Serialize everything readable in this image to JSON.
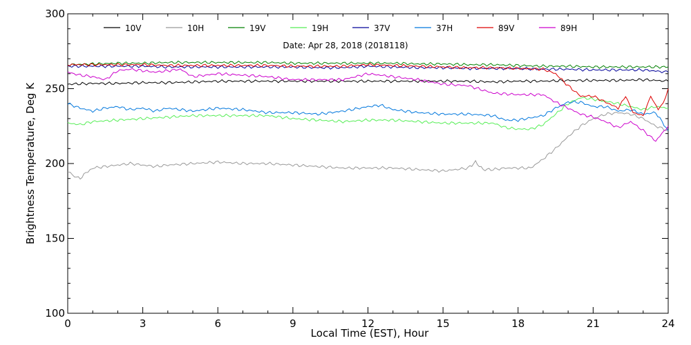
{
  "chart_data": {
    "type": "line",
    "title": "",
    "subtitle": "Date: Apr 28, 2018 (2018118)",
    "xlabel": "Local Time (EST), Hour",
    "ylabel": "Brightness Temperature, Deg K",
    "xlim": [
      0,
      24
    ],
    "ylim": [
      100,
      300
    ],
    "xticks": [
      0,
      3,
      6,
      9,
      12,
      15,
      18,
      21,
      24
    ],
    "yticks": [
      100,
      150,
      200,
      250,
      300
    ],
    "xtick_labels": [
      "0",
      "3",
      "6",
      "9",
      "12",
      "15",
      "18",
      "21",
      "24"
    ],
    "ytick_labels": [
      "100",
      "150",
      "200",
      "250",
      "300"
    ],
    "grid": false,
    "legend_position": "top",
    "series": [
      {
        "name": "10V",
        "color": "#000000",
        "points": [
          [
            0,
            253
          ],
          [
            1,
            253.5
          ],
          [
            2,
            253.5
          ],
          [
            3,
            254
          ],
          [
            4,
            254
          ],
          [
            5,
            254.5
          ],
          [
            6,
            255
          ],
          [
            7,
            255
          ],
          [
            8,
            255
          ],
          [
            9,
            255
          ],
          [
            10,
            255
          ],
          [
            11,
            255
          ],
          [
            12,
            255
          ],
          [
            13,
            255
          ],
          [
            14,
            255
          ],
          [
            15,
            255
          ],
          [
            16,
            255
          ],
          [
            17,
            254.5
          ],
          [
            18,
            255
          ],
          [
            19,
            255
          ],
          [
            20,
            255.5
          ],
          [
            21,
            255.5
          ],
          [
            22,
            255.5
          ],
          [
            23,
            256
          ],
          [
            24,
            255
          ]
        ]
      },
      {
        "name": "10H",
        "color": "#999999",
        "points": [
          [
            0,
            195
          ],
          [
            0.2,
            192
          ],
          [
            0.5,
            190
          ],
          [
            0.8,
            195
          ],
          [
            1,
            197
          ],
          [
            1.5,
            198
          ],
          [
            2,
            199
          ],
          [
            2.5,
            200
          ],
          [
            3,
            199
          ],
          [
            3.5,
            198
          ],
          [
            4,
            199
          ],
          [
            5,
            200
          ],
          [
            6,
            201
          ],
          [
            7,
            200
          ],
          [
            8,
            200
          ],
          [
            9,
            199
          ],
          [
            10,
            198
          ],
          [
            11,
            197
          ],
          [
            12,
            197
          ],
          [
            13,
            197
          ],
          [
            14,
            196
          ],
          [
            15,
            195
          ],
          [
            16,
            197
          ],
          [
            16.3,
            201
          ],
          [
            16.6,
            196
          ],
          [
            17,
            196
          ],
          [
            17.5,
            197
          ],
          [
            18,
            197
          ],
          [
            18.5,
            197
          ],
          [
            19,
            203
          ],
          [
            19.5,
            210
          ],
          [
            20,
            218
          ],
          [
            20.5,
            225
          ],
          [
            21,
            230
          ],
          [
            21.5,
            233
          ],
          [
            22,
            234
          ],
          [
            22.5,
            233
          ],
          [
            23,
            230
          ],
          [
            23.5,
            225
          ],
          [
            24,
            222
          ]
        ]
      },
      {
        "name": "19V",
        "color": "#008000",
        "points": [
          [
            0,
            266
          ],
          [
            1,
            266.5
          ],
          [
            2,
            267
          ],
          [
            3,
            267
          ],
          [
            4,
            267.5
          ],
          [
            5,
            267.5
          ],
          [
            6,
            267.5
          ],
          [
            7,
            267.5
          ],
          [
            8,
            267.5
          ],
          [
            9,
            267
          ],
          [
            10,
            267
          ],
          [
            11,
            267
          ],
          [
            12,
            267
          ],
          [
            13,
            267
          ],
          [
            14,
            266.5
          ],
          [
            15,
            266.5
          ],
          [
            16,
            266
          ],
          [
            17,
            266
          ],
          [
            18,
            265.5
          ],
          [
            19,
            265
          ],
          [
            20,
            265
          ],
          [
            21,
            264.5
          ],
          [
            22,
            264.5
          ],
          [
            23,
            264.5
          ],
          [
            24,
            264.5
          ]
        ]
      },
      {
        "name": "19H",
        "color": "#55ee55",
        "points": [
          [
            0,
            227
          ],
          [
            0.5,
            226
          ],
          [
            1,
            228
          ],
          [
            2,
            229
          ],
          [
            3,
            230
          ],
          [
            4,
            231
          ],
          [
            5,
            232
          ],
          [
            6,
            232
          ],
          [
            7,
            232
          ],
          [
            8,
            232
          ],
          [
            9,
            230
          ],
          [
            10,
            229
          ],
          [
            11,
            228
          ],
          [
            12,
            229
          ],
          [
            13,
            229
          ],
          [
            14,
            228
          ],
          [
            15,
            227
          ],
          [
            16,
            227
          ],
          [
            17,
            227
          ],
          [
            17.5,
            224
          ],
          [
            18,
            223
          ],
          [
            18.5,
            223
          ],
          [
            19,
            226
          ],
          [
            19.5,
            233
          ],
          [
            20,
            240
          ],
          [
            20.5,
            244
          ],
          [
            21,
            243
          ],
          [
            22,
            240
          ],
          [
            23,
            236
          ],
          [
            23.5,
            238
          ],
          [
            24,
            237
          ]
        ]
      },
      {
        "name": "37V",
        "color": "#000099",
        "points": [
          [
            0,
            265
          ],
          [
            1,
            265
          ],
          [
            2,
            265
          ],
          [
            3,
            265
          ],
          [
            4,
            264.5
          ],
          [
            5,
            264.5
          ],
          [
            6,
            264.5
          ],
          [
            7,
            264.5
          ],
          [
            8,
            264.5
          ],
          [
            9,
            264.5
          ],
          [
            10,
            264
          ],
          [
            11,
            264
          ],
          [
            12,
            265
          ],
          [
            13,
            264.5
          ],
          [
            14,
            264
          ],
          [
            15,
            264
          ],
          [
            16,
            263.5
          ],
          [
            17,
            263.5
          ],
          [
            18,
            263.5
          ],
          [
            19,
            263
          ],
          [
            20,
            263
          ],
          [
            21,
            262.5
          ],
          [
            22,
            262.5
          ],
          [
            23,
            262.5
          ],
          [
            24,
            261
          ]
        ]
      },
      {
        "name": "37H",
        "color": "#0077dd",
        "points": [
          [
            0,
            240
          ],
          [
            0.5,
            237
          ],
          [
            1,
            235
          ],
          [
            1.5,
            237
          ],
          [
            2,
            238
          ],
          [
            2.5,
            236
          ],
          [
            3,
            237
          ],
          [
            3.5,
            235
          ],
          [
            4,
            237
          ],
          [
            5,
            235
          ],
          [
            6,
            237
          ],
          [
            7,
            236
          ],
          [
            8,
            234
          ],
          [
            9,
            234
          ],
          [
            10,
            233
          ],
          [
            11,
            235
          ],
          [
            12,
            238
          ],
          [
            12.5,
            239
          ],
          [
            13,
            236
          ],
          [
            14,
            234
          ],
          [
            15,
            233
          ],
          [
            16,
            233
          ],
          [
            17,
            232
          ],
          [
            17.5,
            229
          ],
          [
            18,
            229
          ],
          [
            19,
            232
          ],
          [
            19.5,
            237
          ],
          [
            20,
            241
          ],
          [
            20.5,
            241
          ],
          [
            21,
            238
          ],
          [
            21.5,
            238
          ],
          [
            22,
            235
          ],
          [
            22.5,
            236
          ],
          [
            23,
            233
          ],
          [
            23.5,
            234
          ],
          [
            24,
            222
          ]
        ]
      },
      {
        "name": "89V",
        "color": "#dd0000",
        "points": [
          [
            0,
            266
          ],
          [
            1,
            266
          ],
          [
            2,
            266
          ],
          [
            3,
            266
          ],
          [
            4,
            265.5
          ],
          [
            5,
            265.5
          ],
          [
            6,
            265.5
          ],
          [
            7,
            265.5
          ],
          [
            8,
            265.5
          ],
          [
            9,
            265
          ],
          [
            10,
            265
          ],
          [
            11,
            265
          ],
          [
            12,
            266
          ],
          [
            13,
            265.5
          ],
          [
            14,
            265
          ],
          [
            15,
            264.5
          ],
          [
            16,
            264
          ],
          [
            17,
            264
          ],
          [
            18,
            263.5
          ],
          [
            19,
            263
          ],
          [
            19.5,
            260
          ],
          [
            20,
            252
          ],
          [
            20.5,
            245
          ],
          [
            21,
            245
          ],
          [
            21.5,
            241
          ],
          [
            22,
            237
          ],
          [
            22.3,
            245
          ],
          [
            22.6,
            234
          ],
          [
            23,
            232
          ],
          [
            23.3,
            245
          ],
          [
            23.6,
            236
          ],
          [
            23.8,
            240
          ],
          [
            24,
            250
          ]
        ]
      },
      {
        "name": "89H",
        "color": "#cc00cc",
        "points": [
          [
            0,
            261
          ],
          [
            0.5,
            259
          ],
          [
            1,
            258
          ],
          [
            1.5,
            256
          ],
          [
            2,
            262
          ],
          [
            2.5,
            263
          ],
          [
            3,
            262
          ],
          [
            3.5,
            261
          ],
          [
            4,
            262
          ],
          [
            4.5,
            263
          ],
          [
            5,
            258
          ],
          [
            6,
            260
          ],
          [
            7,
            259
          ],
          [
            8,
            258
          ],
          [
            9,
            256
          ],
          [
            10,
            256
          ],
          [
            11,
            256
          ],
          [
            12,
            260
          ],
          [
            13,
            258
          ],
          [
            14,
            256
          ],
          [
            15,
            253
          ],
          [
            16,
            252
          ],
          [
            17,
            247
          ],
          [
            18,
            246
          ],
          [
            19,
            246
          ],
          [
            19.5,
            241
          ],
          [
            20,
            237
          ],
          [
            20.5,
            233
          ],
          [
            21,
            231
          ],
          [
            21.5,
            228
          ],
          [
            22,
            224
          ],
          [
            22.5,
            228
          ],
          [
            23,
            222
          ],
          [
            23.5,
            215
          ],
          [
            24,
            225
          ]
        ]
      }
    ]
  }
}
